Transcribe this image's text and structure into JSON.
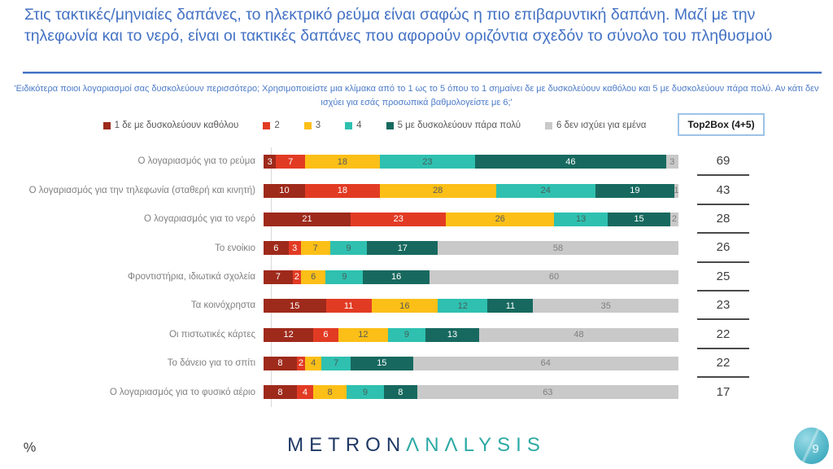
{
  "slide": {
    "title": "Στις τακτικές/μηνιαίες δαπάνες, το ηλεκτρικό ρεύμα είναι σαφώς η πιο επιβαρυντική δαπάνη. Μαζί με την τηλεφωνία και το νερό, είναι οι τακτικές δαπάνες που αφορούν οριζόντια σχεδόν το σύνολο του πληθυσμού",
    "subtitle": "'Ειδικότερα ποιοι λογαριασμοί σας δυσκολεύουν περισσότερο; Χρησιμοποιείστε μια κλίμακα από το 1 ως το 5 όπου το 1 σημαίνει δε με δυσκολεύουν καθόλου και 5 με δυσκολεύουν πάρα πολύ. Αν κάτι δεν ισχύει για εσάς προσωπικά βαθμολογείστε με 6;'",
    "percent_icon": "%",
    "footer_logo": {
      "part1": "METRON",
      "part2": "ΛNΛLYSIS"
    },
    "page_number": "9",
    "accent_colors": {
      "title_blue": "#4472C4",
      "logo_navy": "#1F3864",
      "logo_teal": "#2CA9A4",
      "badge_teal": "#57B9CB"
    }
  },
  "top2box": {
    "header": "Top2Box (4+5)"
  },
  "chart_data": {
    "type": "bar",
    "orientation": "horizontal-stacked",
    "xlim": [
      0,
      100
    ],
    "legend_position": "top",
    "grid": false,
    "series": [
      {
        "name": "1  δε με δυσκολεύουν καθόλου",
        "color": "#9E2A1B",
        "label_color": "#ffffff"
      },
      {
        "name": "2",
        "color": "#E23B24",
        "label_color": "#ffffff"
      },
      {
        "name": "3",
        "color": "#FBBF17",
        "label_color": "#5a5a5a"
      },
      {
        "name": "4",
        "color": "#2FC0B0",
        "label_color": "#47605c"
      },
      {
        "name": "5 με δυσκολεύουν πάρα πολύ",
        "color": "#17695F",
        "label_color": "#ffffff"
      },
      {
        "name": "6 δεν ισχύει για εμένα",
        "color": "#C9C9C9",
        "label_color": "#7f7f7f"
      }
    ],
    "rows": [
      {
        "label": "Ο λογαριασμός για το ρεύμα",
        "values": [
          3,
          7,
          18,
          23,
          46,
          3
        ],
        "top2box": 69
      },
      {
        "label": "Ο λογαριασμός για την τηλεφωνία (σταθερή και κινητή)",
        "values": [
          10,
          18,
          28,
          24,
          19,
          1
        ],
        "top2box": 43
      },
      {
        "label": "Ο λογαριασμός για το νερό",
        "values": [
          21,
          23,
          26,
          13,
          15,
          2
        ],
        "top2box": 28
      },
      {
        "label": "Το ενοίκιο",
        "values": [
          6,
          3,
          7,
          9,
          17,
          58
        ],
        "top2box": 26
      },
      {
        "label": "Φροντιστήρια, ιδιωτικά σχολεία",
        "values": [
          7,
          2,
          6,
          9,
          16,
          60
        ],
        "top2box": 25
      },
      {
        "label": "Τα κοινόχρηστα",
        "values": [
          15,
          11,
          16,
          12,
          11,
          35
        ],
        "top2box": 23
      },
      {
        "label": "Οι πιστωτικές κάρτες",
        "values": [
          12,
          6,
          12,
          9,
          13,
          48
        ],
        "top2box": 22
      },
      {
        "label": "Το δάνειο για το σπίτι",
        "values": [
          8,
          2,
          4,
          7,
          15,
          64
        ],
        "top2box": 22
      },
      {
        "label": "Ο λογαριασμός για το φυσικό αέριο",
        "values": [
          8,
          4,
          8,
          9,
          8,
          63
        ],
        "top2box": 17
      }
    ]
  }
}
